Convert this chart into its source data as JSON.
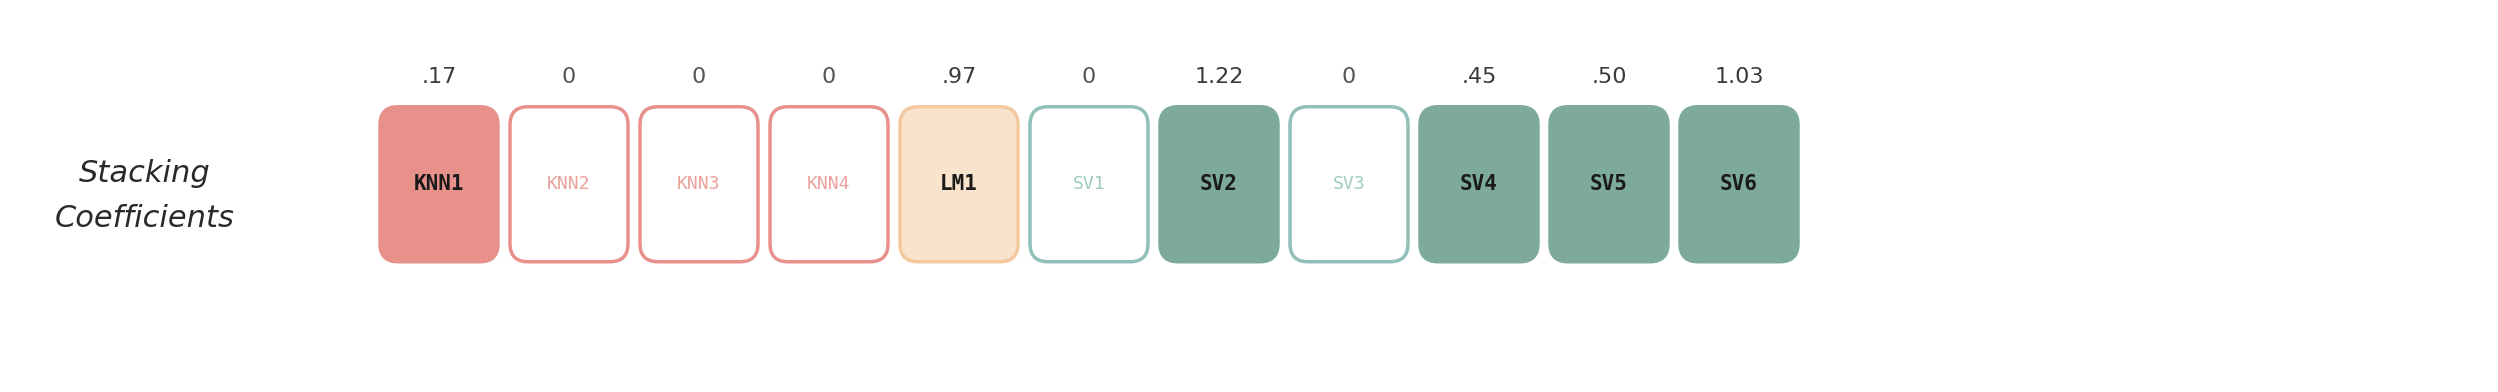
{
  "title": "Stacking\nCoefficients",
  "members": [
    "KNN1",
    "KNN2",
    "KNN3",
    "KNN4",
    "LM1",
    "SV1",
    "SV2",
    "SV3",
    "SV4",
    "SV5",
    "SV6"
  ],
  "coefficients": [
    ".17",
    "0",
    "0",
    "0",
    ".97",
    "0",
    "1.22",
    "0",
    ".45",
    ".50",
    "1.03"
  ],
  "coeff_values": [
    0.17,
    0,
    0,
    0,
    0.97,
    0,
    1.22,
    0,
    0.45,
    0.5,
    1.03
  ],
  "fill_colors": [
    "#e8918b",
    "#ffffff",
    "#ffffff",
    "#ffffff",
    "#fae3cc",
    "#ffffff",
    "#7daa9c",
    "#ffffff",
    "#7daa9c",
    "#7daa9c",
    "#7daa9c"
  ],
  "border_colors": [
    "#e8918b",
    "#e8918b",
    "#e8918b",
    "#e8918b",
    "#f5c9a0",
    "#90c0b8",
    "#7daa9c",
    "#90c0b8",
    "#7daa9c",
    "#7daa9c",
    "#7daa9c"
  ],
  "label_colors": [
    "#1a1a1a",
    "#e8918b",
    "#e8918b",
    "#e8918b",
    "#1a1a1a",
    "#90c0b8",
    "#1a1a1a",
    "#90c0b8",
    "#1a1a1a",
    "#1a1a1a",
    "#1a1a1a"
  ],
  "background_color": "#ffffff",
  "fig_width": 24.98,
  "fig_height": 3.92,
  "dpi": 100
}
